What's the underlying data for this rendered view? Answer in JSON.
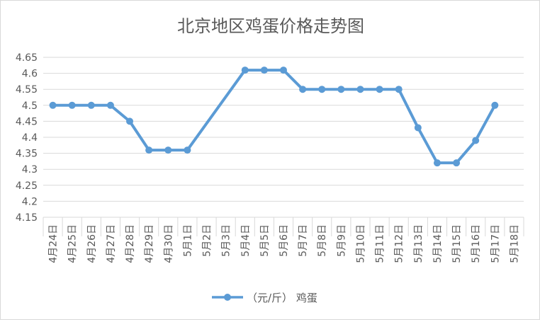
{
  "chart_data": {
    "type": "line",
    "title": "北京地区鸡蛋价格走势图",
    "categories": [
      "4月24日",
      "4月25日",
      "4月26日",
      "4月27日",
      "4月28日",
      "4月29日",
      "4月30日",
      "5月1日",
      "5月2日",
      "5月3日",
      "5月4日",
      "5月5日",
      "5月6日",
      "5月7日",
      "5月8日",
      "5月9日",
      "5月10日",
      "5月11日",
      "5月12日",
      "5月13日",
      "5月14日",
      "5月15日",
      "5月16日",
      "5月17日",
      "5月18日"
    ],
    "series": [
      {
        "name": "（元/斤） 鸡蛋",
        "values": [
          4.5,
          4.5,
          4.5,
          4.5,
          4.45,
          4.36,
          4.36,
          4.36,
          null,
          null,
          4.61,
          4.61,
          4.61,
          4.55,
          4.55,
          4.55,
          4.55,
          4.55,
          4.55,
          4.43,
          4.32,
          4.32,
          4.39,
          4.5,
          null
        ],
        "color": "#5b9bd5"
      }
    ],
    "ylim": [
      4.15,
      4.65
    ],
    "yticks": [
      "4.15",
      "4.2",
      "4.25",
      "4.3",
      "4.35",
      "4.4",
      "4.45",
      "4.5",
      "4.55",
      "4.6",
      "4.65"
    ],
    "connect_gaps": true,
    "grid": true,
    "legend": "bottom",
    "xlabel": "",
    "ylabel": ""
  }
}
